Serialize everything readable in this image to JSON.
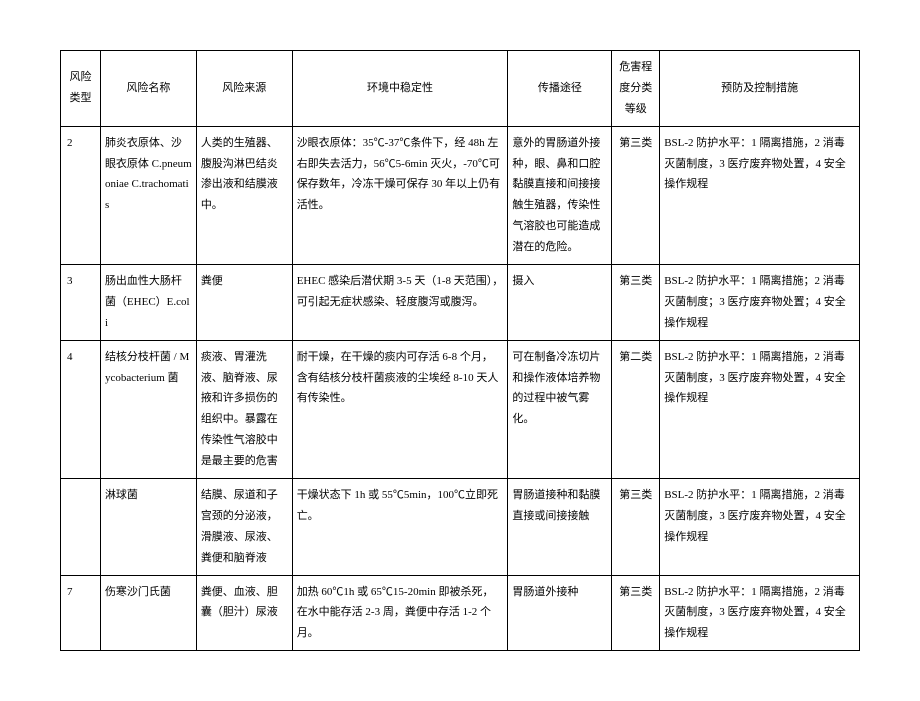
{
  "headers": {
    "type": "风险类型",
    "name": "风险名称",
    "source": "风险来源",
    "stability": "环境中稳定性",
    "route": "传播途径",
    "level": "危害程度分类等级",
    "measures": "预防及控制措施"
  },
  "rows": [
    {
      "type": "2",
      "name": "肺炎衣原体、沙眼衣原体 C.pneumoniae C.trachomatis",
      "source": "人类的生殖器、腹股沟淋巴结炎渗出液和结膜液中。",
      "stability": "沙眼衣原体：35℃-37℃条件下，经 48h 左右即失去活力，56℃5-6min 灭火，-70℃可保存数年，冷冻干燥可保存 30 年以上仍有活性。",
      "route": "意外的胃肠道外接种，眼、鼻和口腔黏膜直接和间接接触生殖器，传染性气溶胶也可能造成潜在的危险。",
      "level": "第三类",
      "measures": "BSL-2 防护水平：1 隔离措施，2 消毒灭菌制度，3 医疗废弃物处置，4 安全操作规程"
    },
    {
      "type": "3",
      "name": "肠出血性大肠杆菌（EHEC）E.coli",
      "source": "粪便",
      "stability": "EHEC 感染后潜伏期 3-5 天（1-8 天范围），可引起无症状感染、轻度腹泻或腹泻。",
      "route": "摄入",
      "level": "第三类",
      "measures": "BSL-2 防护水平：1 隔离措施；2 消毒灭菌制度；3 医疗废弃物处置；4 安全操作规程"
    },
    {
      "type": "4",
      "name": "结核分枝杆菌 / Mycobacterium 菌",
      "source": "痰液、胃灌洗液、脑脊液、尿掖和许多损伤的组织中。暴露在传染性气溶胶中是最主要的危害",
      "stability": "耐干燥，在干燥的痰内可存活 6-8 个月，含有结核分枝杆菌痰液的尘埃经 8-10 天人有传染性。",
      "route": "可在制备冷冻切片和操作液体培养物的过程中被气雾化。",
      "level": "第二类",
      "measures": "BSL-2 防护水平：1 隔离措施，2 消毒灭菌制度，3 医疗废弃物处置，4 安全操作规程"
    },
    {
      "type": "",
      "name": "淋球菌",
      "source": "结膜、尿道和子宫颈的分泌液，滑膜液、尿液、粪便和脑脊液",
      "stability": "干燥状态下 1h 或 55℃5min，100℃立即死亡。",
      "route": "胃肠道接种和黏膜直接或间接接触",
      "level": "第三类",
      "measures": "BSL-2 防护水平：1 隔离措施，2 消毒灭菌制度，3 医疗废弃物处置，4 安全操作规程"
    },
    {
      "type": "7",
      "name": "伤寒沙门氏菌",
      "source": "粪便、血液、胆囊（胆汁）尿液",
      "stability": "加热 60℃1h 或 65℃15-20min 即被杀死，在水中能存活 2-3 周，粪便中存活 1-2 个月。",
      "route": "胃肠道外接种",
      "level": "第三类",
      "measures": "BSL-2 防护水平：1 隔离措施，2 消毒灭菌制度，3 医疗废弃物处置，4 安全操作规程"
    }
  ]
}
